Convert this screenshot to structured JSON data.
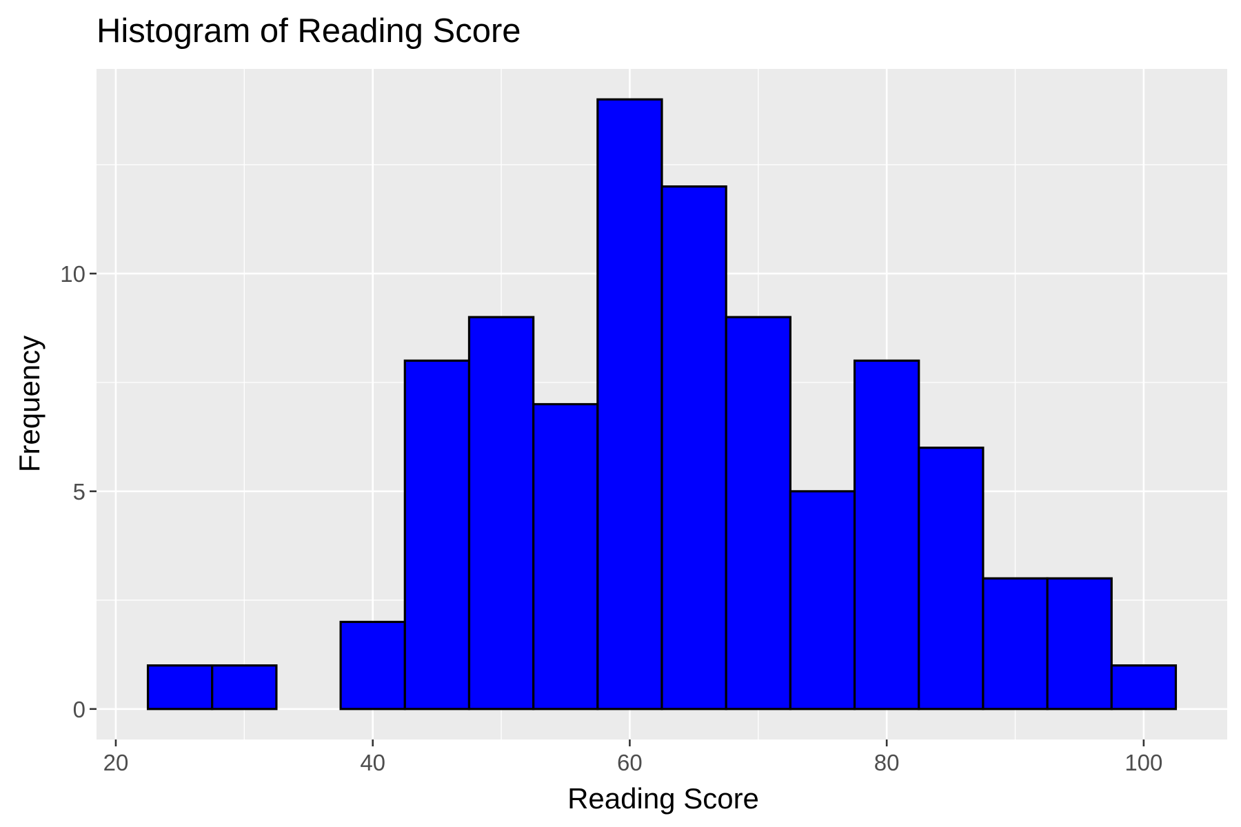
{
  "chart_data": {
    "type": "bar",
    "title": "Histogram of Reading Score",
    "xlabel": "Reading Score",
    "ylabel": "Frequency",
    "bin_width": 5,
    "bins": [
      {
        "start": 22.5,
        "end": 27.5,
        "count": 1
      },
      {
        "start": 27.5,
        "end": 32.5,
        "count": 1
      },
      {
        "start": 32.5,
        "end": 37.5,
        "count": 0
      },
      {
        "start": 37.5,
        "end": 42.5,
        "count": 2
      },
      {
        "start": 42.5,
        "end": 47.5,
        "count": 8
      },
      {
        "start": 47.5,
        "end": 52.5,
        "count": 9
      },
      {
        "start": 52.5,
        "end": 57.5,
        "count": 7
      },
      {
        "start": 57.5,
        "end": 62.5,
        "count": 14
      },
      {
        "start": 62.5,
        "end": 67.5,
        "count": 12
      },
      {
        "start": 67.5,
        "end": 72.5,
        "count": 9
      },
      {
        "start": 72.5,
        "end": 77.5,
        "count": 5
      },
      {
        "start": 77.5,
        "end": 82.5,
        "count": 8
      },
      {
        "start": 82.5,
        "end": 87.5,
        "count": 6
      },
      {
        "start": 87.5,
        "end": 92.5,
        "count": 3
      },
      {
        "start": 92.5,
        "end": 97.5,
        "count": 3
      },
      {
        "start": 97.5,
        "end": 102.5,
        "count": 1
      }
    ],
    "xlim": [
      18.5,
      106.5
    ],
    "ylim": [
      -0.7,
      14.7
    ],
    "x_ticks": [
      20,
      40,
      60,
      80,
      100
    ],
    "x_tick_labels": [
      "20",
      "40",
      "60",
      "80",
      "100"
    ],
    "x_minor_ticks": [
      30,
      50,
      70,
      90
    ],
    "y_ticks": [
      0,
      5,
      10
    ],
    "y_tick_labels": [
      "0",
      "5",
      "10"
    ],
    "y_minor_ticks": [
      2.5,
      7.5,
      12.5
    ],
    "grid": true,
    "legend": "none",
    "colors": {
      "bar_fill": "#0000ff",
      "bar_outline": "#000000",
      "panel_background": "#ebebeb",
      "grid": "#ffffff"
    }
  }
}
